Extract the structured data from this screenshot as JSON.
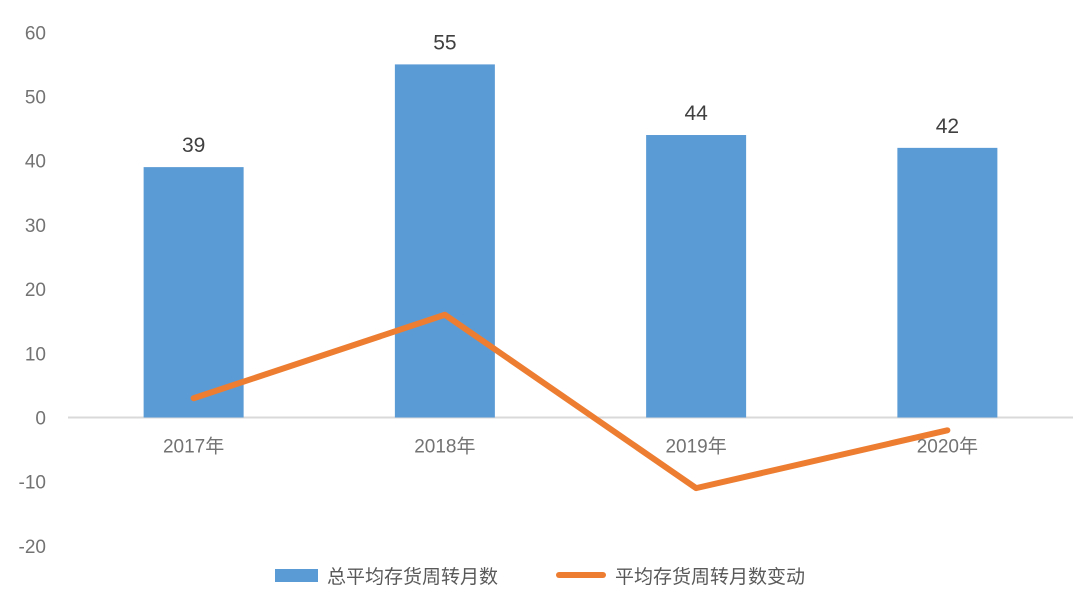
{
  "chart_data": {
    "type": "bar",
    "subtype": "combo-bar-line",
    "title": "",
    "xlabel": "",
    "ylabel": "",
    "categories": [
      "2017年",
      "2018年",
      "2019年",
      "2020年"
    ],
    "series": [
      {
        "name": "总平均存货周转月数",
        "type": "bar",
        "color": "#5B9BD5",
        "values": [
          39,
          55,
          44,
          42
        ],
        "data_labels": [
          "39",
          "55",
          "44",
          "42"
        ]
      },
      {
        "name": "平均存货周转月数变动",
        "type": "line",
        "color": "#ED7D31",
        "values": [
          3,
          16,
          -11,
          -2
        ]
      }
    ],
    "y_axis": {
      "min": -20,
      "max": 60,
      "step": 10,
      "ticks": [
        "60",
        "50",
        "40",
        "30",
        "20",
        "10",
        "0",
        "-10",
        "-20"
      ]
    },
    "grid": false,
    "legend_position": "bottom"
  },
  "colors": {
    "bar": "#5B9BD5",
    "line": "#ED7D31",
    "axis_line": "#D9D9D9",
    "tick_label": "#737373",
    "category_label": "#737373",
    "data_label": "#404040",
    "legend_label": "#595959",
    "background": "#ffffff"
  }
}
